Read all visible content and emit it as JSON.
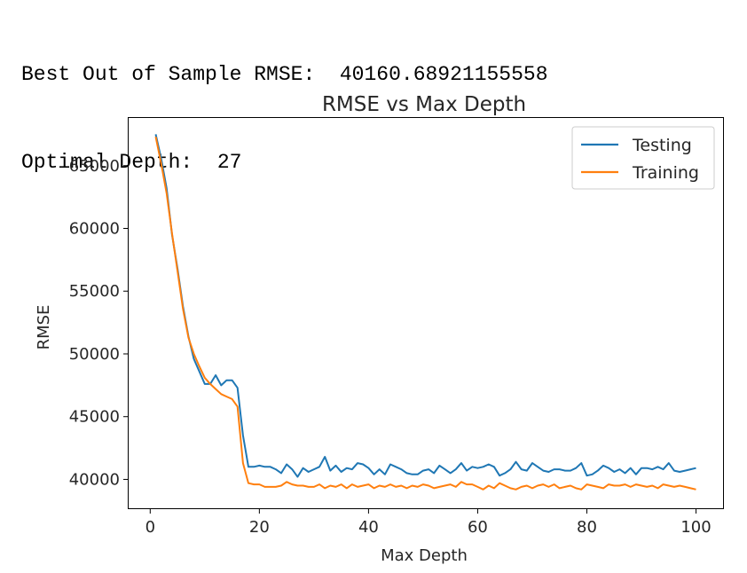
{
  "output": {
    "rmse_label": "Best Out of Sample RMSE:",
    "rmse_value": "40160.68921155558",
    "depth_label": "Optimal Depth:",
    "depth_value": "27"
  },
  "chart_data": {
    "type": "line",
    "title": "RMSE vs Max Depth",
    "xlabel": "Max Depth",
    "ylabel": "RMSE",
    "xlim": [
      -3.95,
      104.95
    ],
    "ylim": [
      37700,
      68800
    ],
    "xticks": [
      0,
      20,
      40,
      60,
      80,
      100
    ],
    "yticks": [
      40000,
      45000,
      50000,
      55000,
      60000,
      65000
    ],
    "legend_position": "top-right",
    "colors": {
      "Testing": "#1f77b4",
      "Training": "#ff7f0e"
    },
    "x": [
      1,
      2,
      3,
      4,
      5,
      6,
      7,
      8,
      9,
      10,
      11,
      12,
      13,
      14,
      15,
      16,
      17,
      18,
      19,
      20,
      21,
      22,
      23,
      24,
      25,
      26,
      27,
      28,
      29,
      30,
      31,
      32,
      33,
      34,
      35,
      36,
      37,
      38,
      39,
      40,
      41,
      42,
      43,
      44,
      45,
      46,
      47,
      48,
      49,
      50,
      51,
      52,
      53,
      54,
      55,
      56,
      57,
      58,
      59,
      60,
      61,
      62,
      63,
      64,
      65,
      66,
      67,
      68,
      69,
      70,
      71,
      72,
      73,
      74,
      75,
      76,
      77,
      78,
      79,
      80,
      81,
      82,
      83,
      84,
      85,
      86,
      87,
      88,
      89,
      90,
      91,
      92,
      93,
      94,
      95,
      96,
      97,
      98,
      99,
      100
    ],
    "series": [
      {
        "name": "Testing",
        "values": [
          67500,
          65600,
          63200,
          59500,
          56800,
          53800,
          51400,
          49600,
          48600,
          47600,
          47600,
          48300,
          47500,
          47900,
          47900,
          47300,
          43500,
          41000,
          41000,
          41100,
          41000,
          41000,
          40800,
          40500,
          41200,
          40800,
          40200,
          40900,
          40600,
          40800,
          41000,
          41800,
          40700,
          41100,
          40600,
          40900,
          40800,
          41300,
          41200,
          40900,
          40400,
          40800,
          40400,
          41200,
          41000,
          40800,
          40500,
          40400,
          40400,
          40700,
          40800,
          40500,
          41100,
          40800,
          40500,
          40800,
          41300,
          40700,
          41000,
          40900,
          41000,
          41200,
          41000,
          40300,
          40500,
          40800,
          41400,
          40800,
          40700,
          41300,
          41000,
          40700,
          40600,
          40800,
          40800,
          40700,
          40700,
          40900,
          41300,
          40300,
          40400,
          40700,
          41100,
          40900,
          40600,
          40800,
          40500,
          40900,
          40400,
          40900,
          40900,
          40800,
          41000,
          40800,
          41300,
          40700,
          40600,
          40700,
          40800,
          40900
        ]
      },
      {
        "name": "Training",
        "values": [
          67300,
          65200,
          62800,
          59600,
          56600,
          53600,
          51300,
          50000,
          49000,
          48100,
          47600,
          47200,
          46800,
          46600,
          46400,
          45800,
          41300,
          39700,
          39600,
          39600,
          39400,
          39400,
          39400,
          39500,
          39800,
          39600,
          39500,
          39500,
          39400,
          39400,
          39600,
          39300,
          39500,
          39400,
          39600,
          39300,
          39600,
          39400,
          39500,
          39600,
          39300,
          39500,
          39400,
          39600,
          39400,
          39500,
          39300,
          39500,
          39400,
          39600,
          39500,
          39300,
          39400,
          39500,
          39600,
          39400,
          39800,
          39600,
          39600,
          39400,
          39200,
          39500,
          39300,
          39700,
          39500,
          39300,
          39200,
          39400,
          39500,
          39300,
          39500,
          39600,
          39400,
          39600,
          39300,
          39400,
          39500,
          39300,
          39200,
          39600,
          39500,
          39400,
          39300,
          39600,
          39500,
          39500,
          39600,
          39400,
          39600,
          39500,
          39400,
          39500,
          39300,
          39600,
          39500,
          39400,
          39500,
          39400,
          39300,
          39200
        ]
      }
    ]
  }
}
